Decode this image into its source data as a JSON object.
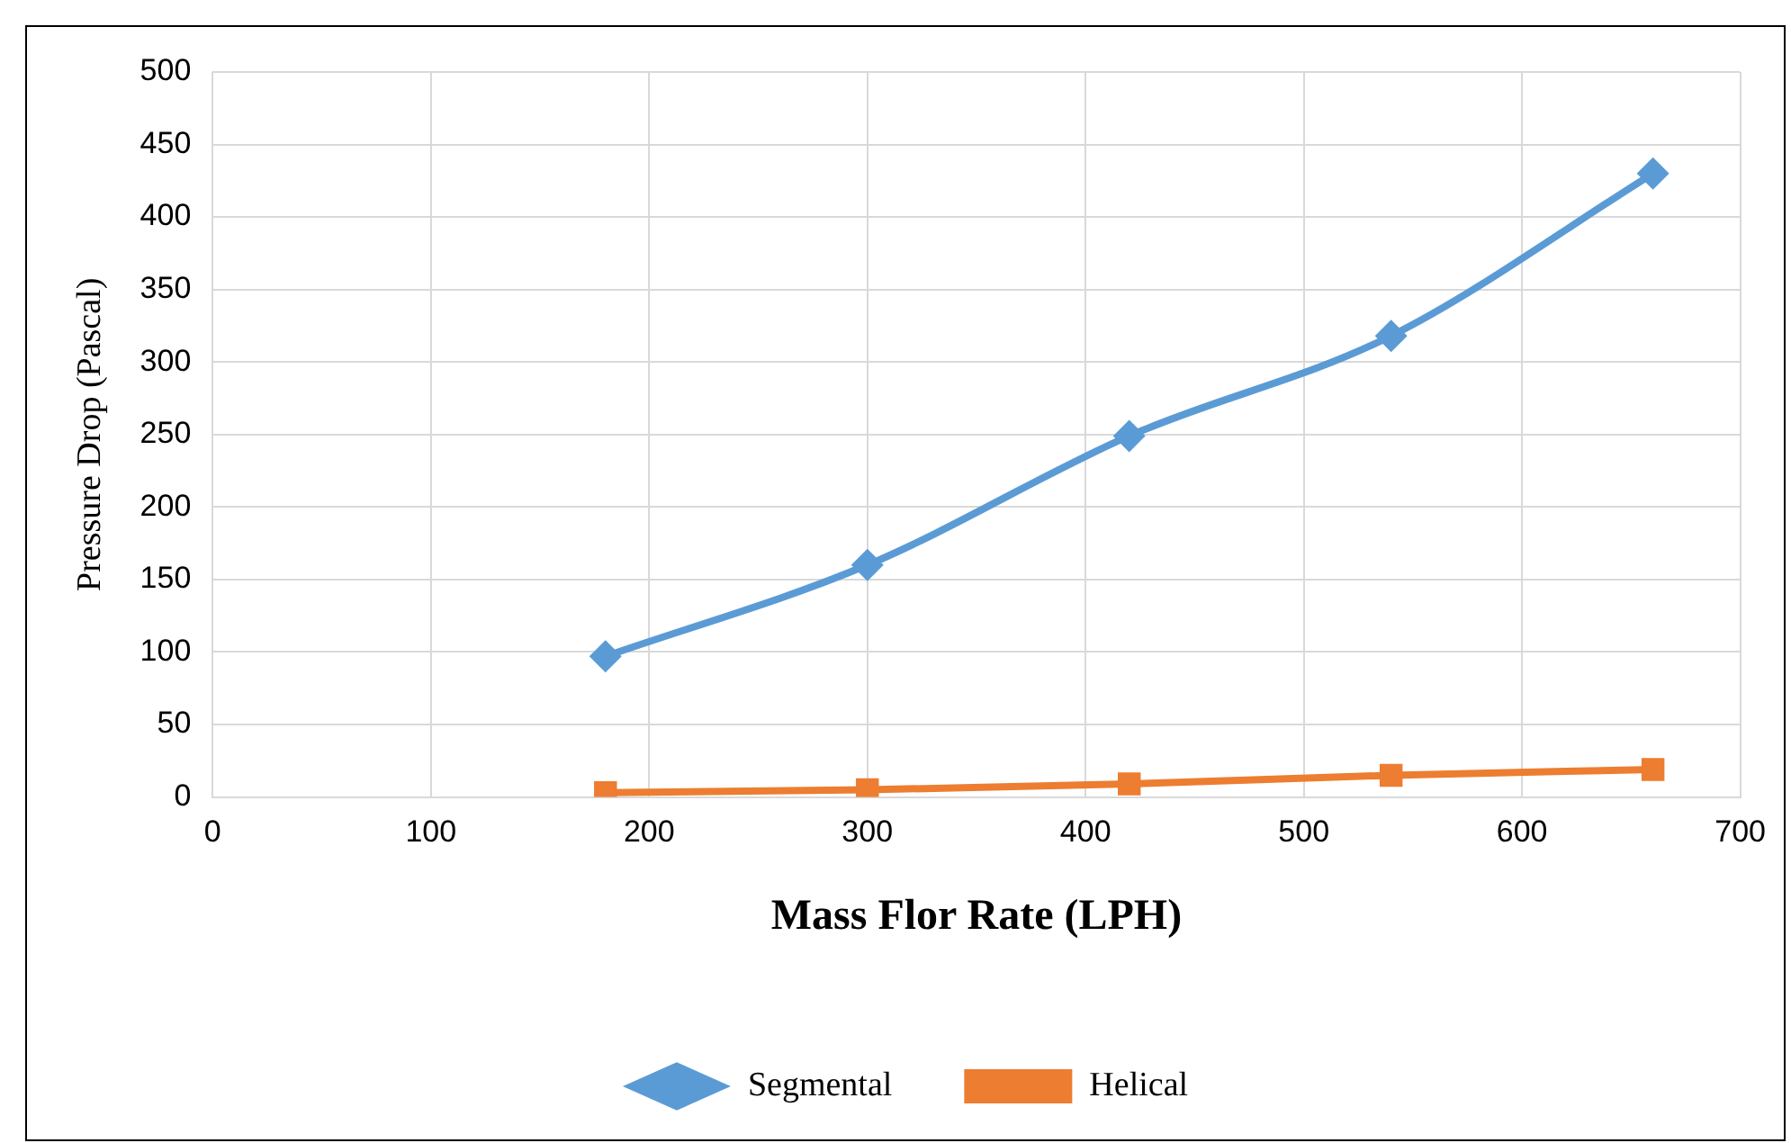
{
  "chart_data": {
    "type": "line",
    "xlabel": "Mass Flor Rate (LPH)",
    "ylabel": "Pressure Drop (Pascal)",
    "x": [
      180,
      300,
      420,
      540,
      660
    ],
    "series": [
      {
        "name": "Segmental",
        "color": "#5b9bd5",
        "marker": "diamond",
        "values": [
          97,
          160,
          249,
          318,
          430
        ]
      },
      {
        "name": "Helical",
        "color": "#ed7d31",
        "marker": "square",
        "values": [
          3,
          5,
          9,
          15,
          19
        ]
      }
    ],
    "xlim": [
      0,
      700
    ],
    "xticks": [
      0,
      100,
      200,
      300,
      400,
      500,
      600,
      700
    ],
    "ylim": [
      0,
      500
    ],
    "yticks": [
      0,
      50,
      100,
      150,
      200,
      250,
      300,
      350,
      400,
      450,
      500
    ],
    "grid": true,
    "legend": "bottom",
    "line_style": "solid"
  }
}
